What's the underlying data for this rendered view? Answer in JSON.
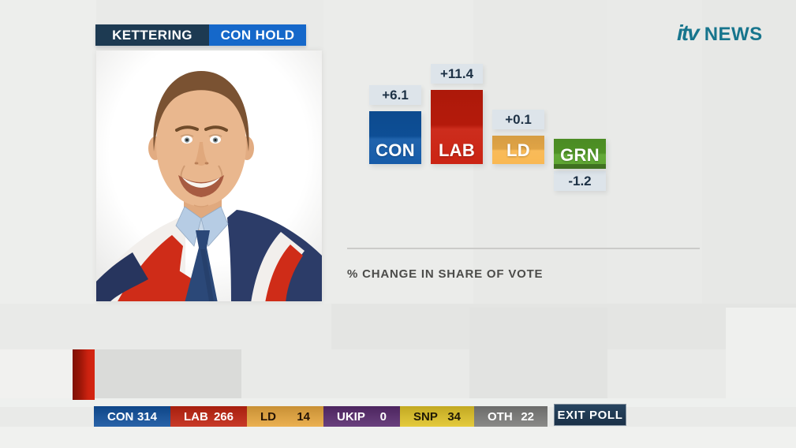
{
  "header": {
    "constituency": "KETTERING",
    "result": "CON HOLD"
  },
  "logo": {
    "brand": "itv",
    "suffix": "NEWS"
  },
  "chart_data": {
    "type": "bar",
    "title": "% CHANGE IN SHARE OF VOTE",
    "categories": [
      "CON",
      "LAB",
      "LD",
      "GRN"
    ],
    "values": [
      6.1,
      11.4,
      0.1,
      -1.2
    ],
    "value_labels": [
      "+6.1",
      "+11.4",
      "+0.1",
      "-1.2"
    ],
    "bar_colors": [
      "#0f57a6",
      "#c91d0c",
      "#f9b64d",
      "#57a229"
    ],
    "value_box_bg": "#dde4ea",
    "value_box_text": "#1d3145",
    "legend_position": "none",
    "grid": false
  },
  "ticker": {
    "segments": [
      {
        "party": "CON",
        "value": "314",
        "bg": "#11519e",
        "fg": "#ffffff"
      },
      {
        "party": "LAB",
        "value": "266",
        "bg": "#c22410",
        "fg": "#ffffff"
      },
      {
        "party": "LD",
        "value": "14",
        "bg": "#e9a83e",
        "fg": "#241305"
      },
      {
        "party": "UKIP",
        "value": "0",
        "bg": "#592b6f",
        "fg": "#ffffff"
      },
      {
        "party": "SNP",
        "value": "34",
        "bg": "#e2c528",
        "fg": "#201a06"
      },
      {
        "party": "OTH",
        "value": "22",
        "bg": "#7d7d7b",
        "fg": "#ffffff"
      }
    ],
    "badge": "EXIT POLL"
  }
}
